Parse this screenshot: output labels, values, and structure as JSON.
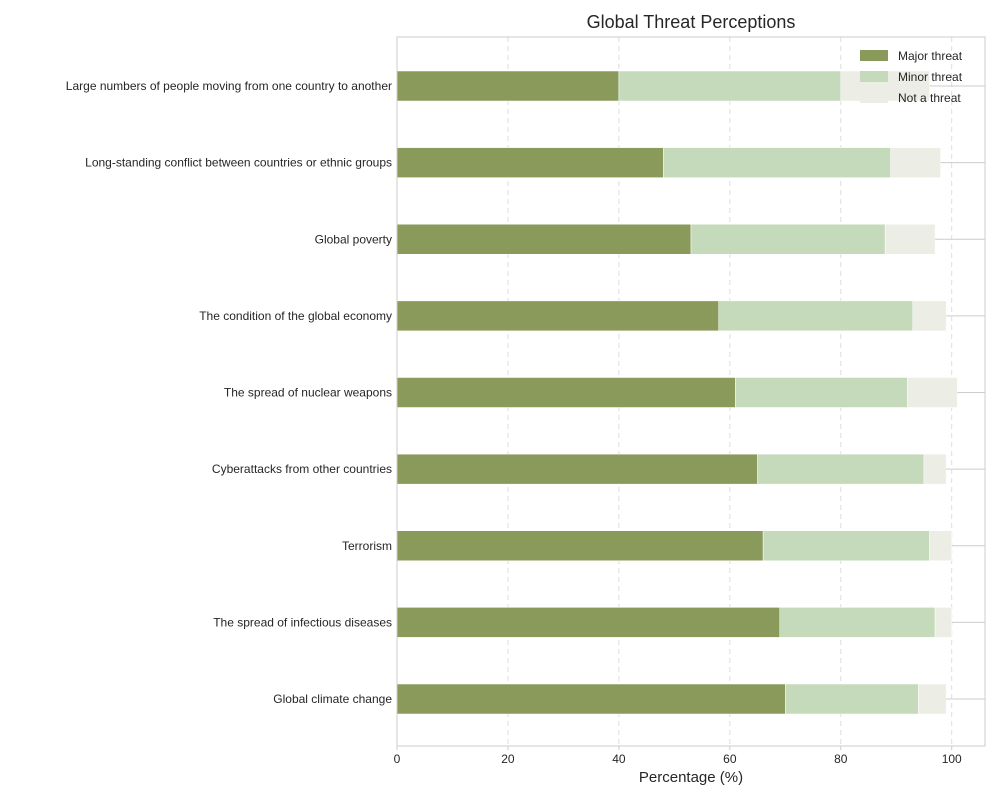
{
  "chart_data": {
    "type": "bar",
    "orientation": "horizontal",
    "stacked": true,
    "title": "Global Threat Perceptions",
    "xlabel": "Percentage (%)",
    "ylabel": "",
    "xlim": [
      0,
      106
    ],
    "xticks": [
      0,
      20,
      40,
      60,
      80,
      100
    ],
    "grid": "x-dashed",
    "legend_position": "top-right",
    "categories": [
      "Large numbers of people moving from one country to another",
      "Long-standing conflict between countries or ethnic groups",
      "Global poverty",
      "The condition of the global economy",
      "The spread of nuclear weapons",
      "Cyberattacks from other countries",
      "Terrorism",
      "The spread of infectious diseases",
      "Global climate change"
    ],
    "series": [
      {
        "name": "Major threat",
        "color": "#8a9a5b",
        "values": [
          40,
          48,
          53,
          58,
          61,
          65,
          66,
          69,
          70
        ]
      },
      {
        "name": "Minor threat",
        "color": "#c5dabb",
        "values": [
          40,
          41,
          35,
          35,
          31,
          30,
          30,
          28,
          24
        ]
      },
      {
        "name": "Not a threat",
        "color": "#ecede4",
        "values": [
          16,
          9,
          9,
          6,
          9,
          4,
          4,
          3,
          5
        ]
      }
    ]
  }
}
